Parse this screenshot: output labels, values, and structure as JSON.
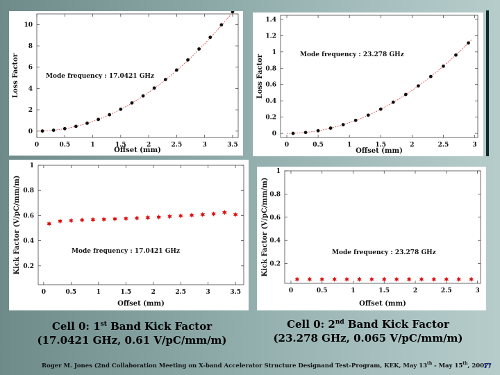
{
  "charts": [
    {
      "type": "scatter",
      "ylabel": "Loss Factor",
      "xlabel": "Offset (mm)",
      "annotation": "Mode frequency : 17.0421 GHz",
      "xlim": [
        0,
        3.6
      ],
      "ylim": [
        -0.6,
        11
      ],
      "xticks": [
        "0",
        "0.5",
        "1",
        "1.5",
        "2",
        "2.5",
        "3",
        "3.5"
      ],
      "yticks": [
        "0",
        "2",
        "4",
        "6",
        "8",
        "10"
      ],
      "x": [
        0.1,
        0.3,
        0.5,
        0.7,
        0.9,
        1.1,
        1.3,
        1.5,
        1.7,
        1.9,
        2.1,
        2.3,
        2.5,
        2.7,
        2.9,
        3.1,
        3.3,
        3.5
      ],
      "y": [
        0.01,
        0.08,
        0.23,
        0.45,
        0.74,
        1.1,
        1.54,
        2.05,
        2.64,
        3.3,
        4.04,
        4.84,
        5.73,
        6.68,
        7.71,
        8.8,
        9.97,
        11.2
      ],
      "fit": [
        0,
        0.91
      ],
      "marker_color": "#111111"
    },
    {
      "type": "scatter",
      "ylabel": "Loss Factor",
      "xlabel": "Offset (mm)",
      "annotation": "Mode frequency : 23.278 GHz",
      "xlim": [
        -0.1,
        3.05
      ],
      "ylim": [
        -0.05,
        1.45
      ],
      "xticks": [
        "0",
        "0.5",
        "1",
        "1.5",
        "2",
        "2.5",
        "3"
      ],
      "yticks": [
        "0",
        "0.2",
        "0.4",
        "0.6",
        "0.8",
        "1",
        "1.2",
        "1.4"
      ],
      "x": [
        0.1,
        0.3,
        0.5,
        0.7,
        0.9,
        1.1,
        1.3,
        1.5,
        1.7,
        1.9,
        2.1,
        2.3,
        2.5,
        2.7,
        2.9
      ],
      "y": [
        0.001,
        0.012,
        0.033,
        0.065,
        0.107,
        0.16,
        0.224,
        0.298,
        0.383,
        0.478,
        0.583,
        0.699,
        0.825,
        0.962,
        1.11
      ],
      "fit": [
        0,
        0.132
      ],
      "marker_color": "#111111"
    },
    {
      "type": "scatter",
      "ylabel": "Kick Factor (V/pC/mm/m)",
      "xlabel": "Offset (mm)",
      "annotation": "Mode frequency : 17.0421 GHz",
      "xlim": [
        -0.1,
        3.65
      ],
      "ylim": [
        0.05,
        1.0
      ],
      "xticks": [
        "0",
        "0.5",
        "1",
        "1.5",
        "2",
        "2.5",
        "3",
        "3.5"
      ],
      "yticks": [
        "0.2",
        "0.4",
        "0.6",
        "0.8",
        "1"
      ],
      "x": [
        0.1,
        0.3,
        0.5,
        0.7,
        0.9,
        1.1,
        1.3,
        1.5,
        1.7,
        1.9,
        2.1,
        2.3,
        2.5,
        2.7,
        2.9,
        3.1,
        3.3,
        3.5
      ],
      "y": [
        0.535,
        0.555,
        0.56,
        0.565,
        0.568,
        0.57,
        0.573,
        0.576,
        0.58,
        0.584,
        0.588,
        0.593,
        0.598,
        0.603,
        0.608,
        0.613,
        0.625,
        0.608
      ],
      "fit": null,
      "marker_color": "#dd1111"
    },
    {
      "type": "scatter",
      "ylabel": "Kick Factor (V/pC/mm/m)",
      "xlabel": "Offset (mm)",
      "annotation": "Mode frequency : 23.278 GHz",
      "xlim": [
        -0.1,
        3.05
      ],
      "ylim": [
        0.03,
        1.0
      ],
      "xticks": [
        "0",
        "0.5",
        "1",
        "1.5",
        "2",
        "2.5",
        "3"
      ],
      "yticks": [
        "0.2",
        "0.4",
        "0.6",
        "0.8",
        "1"
      ],
      "x": [
        0.1,
        0.3,
        0.5,
        0.7,
        0.9,
        1.1,
        1.3,
        1.5,
        1.7,
        1.9,
        2.1,
        2.3,
        2.5,
        2.7,
        2.9
      ],
      "y": [
        0.065,
        0.065,
        0.065,
        0.065,
        0.065,
        0.065,
        0.065,
        0.065,
        0.065,
        0.065,
        0.065,
        0.065,
        0.065,
        0.065,
        0.065
      ],
      "fit": null,
      "marker_color": "#dd1111"
    }
  ],
  "captions": {
    "left_line1_a": "Cell 0: 1",
    "left_line1_sup": "st",
    "left_line1_b": " Band Kick Factor",
    "left_line2": "(17.0421 GHz, 0.61 V/pC/mm/m)",
    "right_line1_a": "Cell 0: 2",
    "right_line1_sup": "nd",
    "right_line1_b": "  Band Kick Factor",
    "right_line2": "(23.278 GHz, 0.065 V/pC/mm/m)"
  },
  "footer": {
    "text_a": "Roger M. Jones (2nd Collaboration Meeting on X-band Accelerator Structure Designand Test-Program, KEK, May 13",
    "sup1": "th",
    "text_b": " - May 15",
    "sup2": "th",
    "text_c": ", 2007)",
    "slide_number": "17"
  }
}
